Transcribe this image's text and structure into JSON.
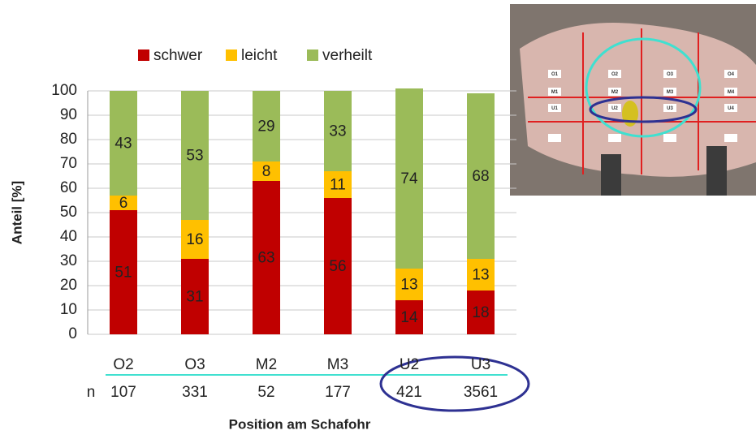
{
  "chart_data": {
    "type": "stacked_bar",
    "categories": [
      "O2",
      "O3",
      "M2",
      "M3",
      "U2",
      "U3"
    ],
    "series": [
      {
        "name": "schwer",
        "color": "#c00000",
        "values": [
          51,
          31,
          63,
          56,
          14,
          18
        ]
      },
      {
        "name": "leicht",
        "color": "#ffc000",
        "values": [
          6,
          16,
          8,
          11,
          13,
          13
        ]
      },
      {
        "name": "verheilt",
        "color": "#9bbb59",
        "values": [
          43,
          53,
          29,
          33,
          74,
          68
        ]
      }
    ],
    "ylim": [
      0,
      100
    ],
    "yticks": [
      0,
      10,
      20,
      30,
      40,
      50,
      60,
      70,
      80,
      90,
      100
    ],
    "grid": true,
    "y_label": "Anteil  [%]",
    "x_label": "Position am Schafohr",
    "n_label": "n",
    "sample_sizes": [
      107,
      331,
      52,
      177,
      421,
      3561
    ]
  },
  "photo": {
    "labels": [
      "O1",
      "O2",
      "O3",
      "O4",
      "M1",
      "M2",
      "M3",
      "M4",
      "U1",
      "U2",
      "U3",
      "U4"
    ]
  }
}
